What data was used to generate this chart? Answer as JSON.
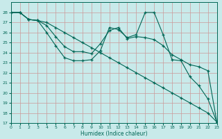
{
  "background_color": "#c8eaea",
  "grid_color": "#cc9999",
  "line_color": "#006655",
  "xlabel": "Humidex (Indice chaleur)",
  "ylim": [
    17,
    29
  ],
  "xlim": [
    0,
    23
  ],
  "yticks": [
    17,
    18,
    19,
    20,
    21,
    22,
    23,
    24,
    25,
    26,
    27,
    28
  ],
  "xticks": [
    0,
    1,
    2,
    3,
    4,
    5,
    6,
    7,
    8,
    9,
    10,
    11,
    12,
    13,
    14,
    15,
    16,
    17,
    18,
    19,
    20,
    21,
    22,
    23
  ],
  "series1_x": [
    0,
    1,
    2,
    3,
    4,
    5,
    6,
    7,
    8,
    9,
    10,
    11,
    12,
    13,
    14,
    15,
    16,
    17,
    18,
    19,
    20,
    21,
    22,
    23
  ],
  "series1_y": [
    28.0,
    28.0,
    27.3,
    27.2,
    26.7,
    25.6,
    24.6,
    24.1,
    24.1,
    23.9,
    24.9,
    26.2,
    26.5,
    25.4,
    25.6,
    25.5,
    25.3,
    24.7,
    23.8,
    23.3,
    22.8,
    22.6,
    22.2,
    17.1
  ],
  "series2_x": [
    0,
    1,
    2,
    3,
    4,
    5,
    6,
    7,
    8,
    9,
    10,
    11,
    12,
    13,
    14,
    15,
    16,
    17,
    18,
    19,
    20,
    21,
    22,
    23
  ],
  "series2_y": [
    28.0,
    28.0,
    27.3,
    27.2,
    26.0,
    24.7,
    23.5,
    23.2,
    23.2,
    23.3,
    24.2,
    26.5,
    26.3,
    25.5,
    25.8,
    28.0,
    28.0,
    25.8,
    23.3,
    23.2,
    21.6,
    20.7,
    19.4,
    17.1
  ],
  "series3_x": [
    0,
    1,
    2,
    3,
    4,
    5,
    6,
    7,
    8,
    9,
    10,
    11,
    12,
    13,
    14,
    15,
    16,
    17,
    18,
    19,
    20,
    21,
    22,
    23
  ],
  "series3_y": [
    28.0,
    28.0,
    27.3,
    27.2,
    27.0,
    26.5,
    26.0,
    25.5,
    25.0,
    24.5,
    24.0,
    23.5,
    23.0,
    22.5,
    22.0,
    21.5,
    21.0,
    20.5,
    20.0,
    19.5,
    19.0,
    18.5,
    18.0,
    17.1
  ]
}
